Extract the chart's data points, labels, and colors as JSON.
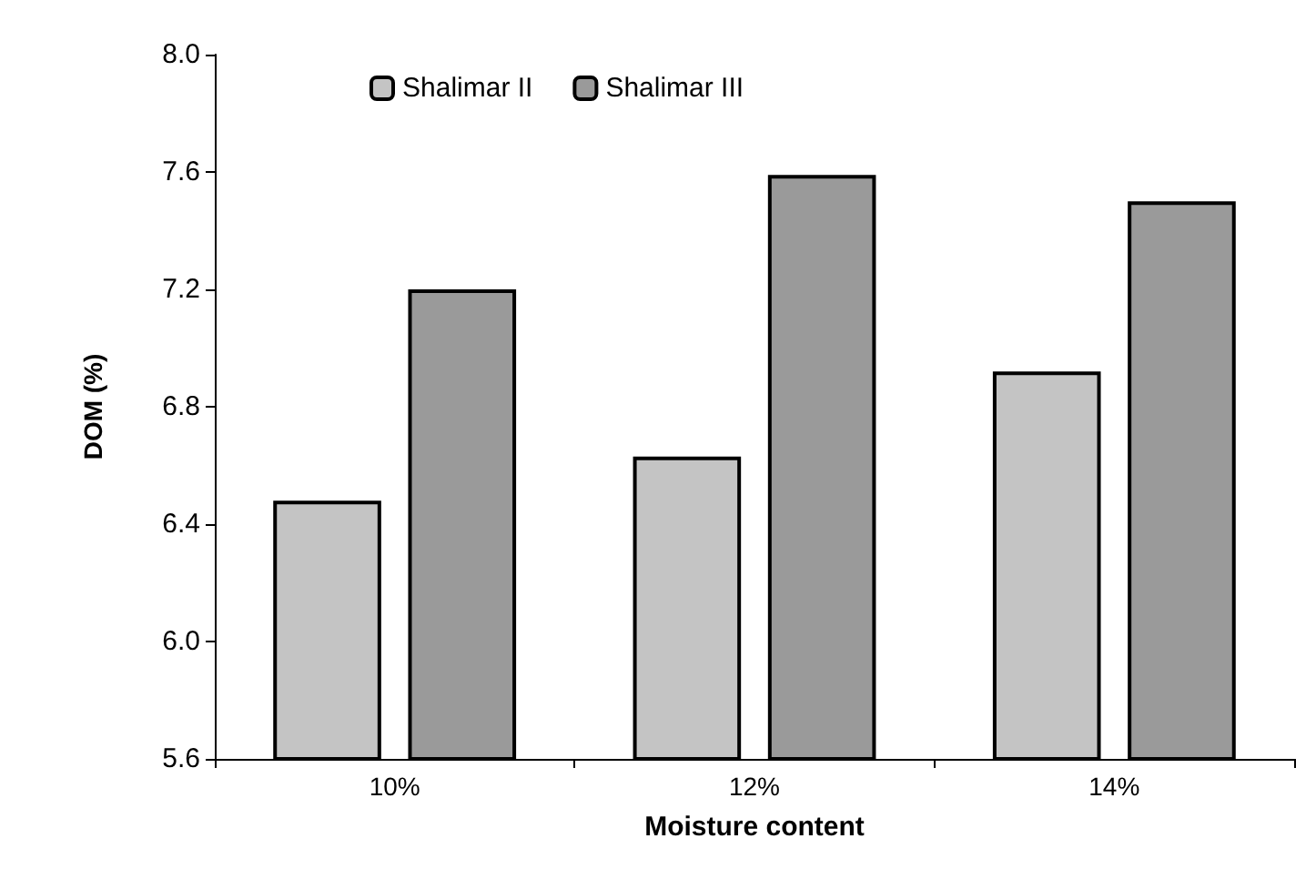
{
  "chart_data": {
    "type": "bar",
    "xlabel": "Moisture content",
    "ylabel": "DOM (%)",
    "categories": [
      "10%",
      "12%",
      "14%"
    ],
    "series": [
      {
        "name": "Shalimar II",
        "color": "#c4c4c4",
        "values": [
          6.48,
          6.63,
          6.92
        ]
      },
      {
        "name": "Shalimar III",
        "color": "#9a9a9a",
        "values": [
          7.2,
          7.59,
          7.5
        ]
      }
    ],
    "ylim": [
      5.6,
      8.0
    ],
    "yticks": [
      5.6,
      {
        "value": 6,
        "label": "6.0"
      },
      6.4,
      6.8,
      7.2,
      7.6,
      {
        "value": 8,
        "label": "8.0"
      }
    ],
    "grid": false,
    "legend": "top left"
  }
}
